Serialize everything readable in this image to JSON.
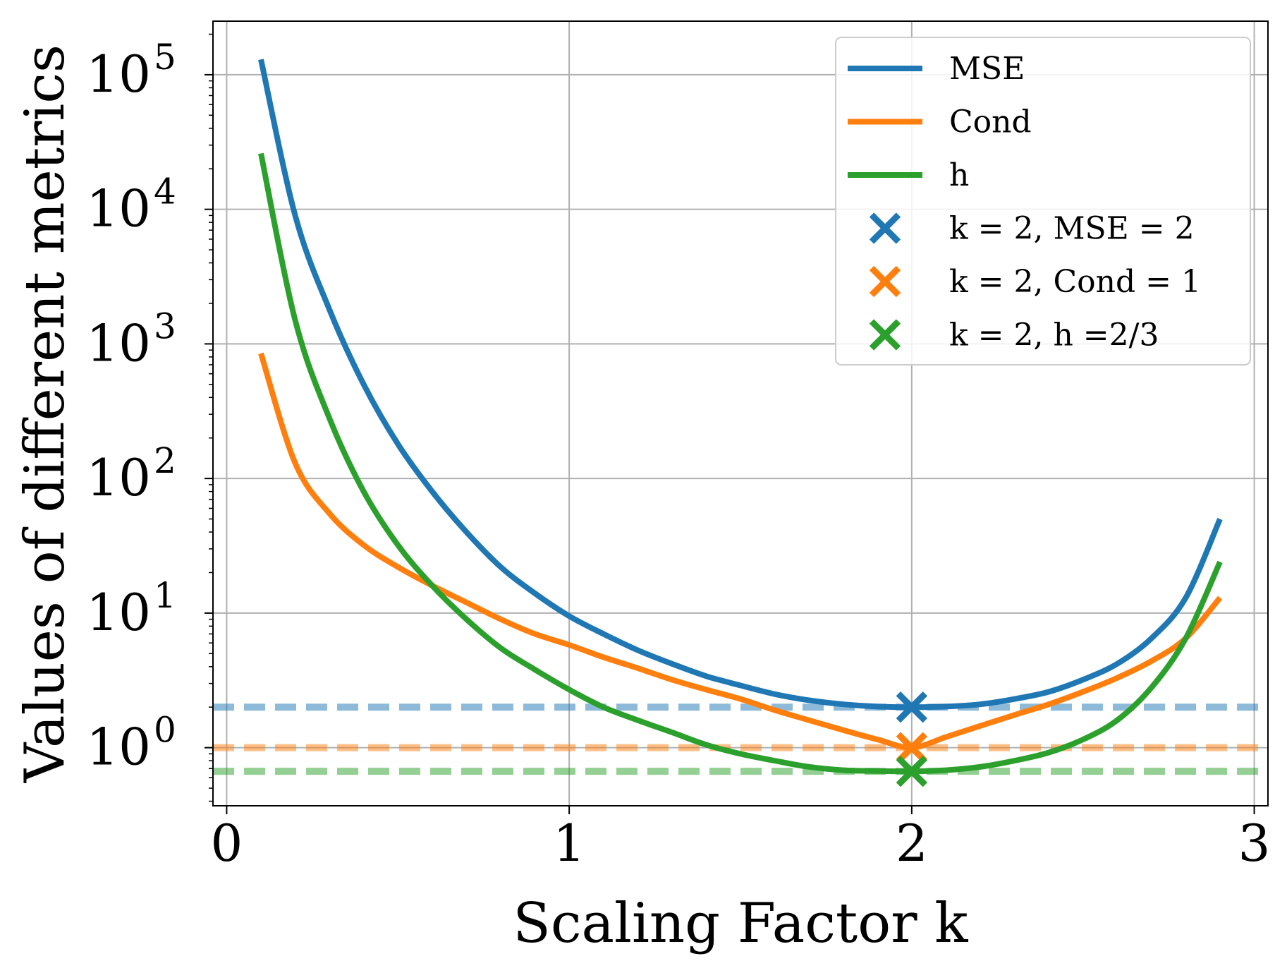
{
  "chart_data": {
    "type": "line",
    "xlabel": "Scaling Factor k",
    "ylabel": "Values of different metrics",
    "xlim": [
      -0.04,
      3.04
    ],
    "ylim": [
      0.37,
      250000
    ],
    "yscale": "log",
    "grid": true,
    "legend_position": "top-right",
    "x_ticks": [
      {
        "value": 0,
        "label": "0"
      },
      {
        "value": 1,
        "label": "1"
      },
      {
        "value": 2,
        "label": "2"
      },
      {
        "value": 3,
        "label": "3"
      }
    ],
    "y_ticks": [
      {
        "value": 1,
        "base": "10",
        "exp": "0"
      },
      {
        "value": 10,
        "base": "10",
        "exp": "1"
      },
      {
        "value": 100,
        "base": "10",
        "exp": "2"
      },
      {
        "value": 1000,
        "base": "10",
        "exp": "3"
      },
      {
        "value": 10000,
        "base": "10",
        "exp": "4"
      },
      {
        "value": 100000,
        "base": "10",
        "exp": "5"
      }
    ],
    "series": [
      {
        "name": "MSE",
        "color": "#1f77b4",
        "x": [
          0.1,
          0.2,
          0.3,
          0.4,
          0.5,
          0.6,
          0.7,
          0.8,
          0.9,
          1.0,
          1.1,
          1.2,
          1.3,
          1.4,
          1.5,
          1.6,
          1.7,
          1.8,
          1.9,
          2.0,
          2.1,
          2.2,
          2.3,
          2.4,
          2.5,
          2.6,
          2.7,
          2.8,
          2.9
        ],
        "y": [
          130000,
          9000,
          1800,
          500,
          180,
          80,
          40,
          22,
          14,
          9.5,
          7,
          5.3,
          4.2,
          3.4,
          2.9,
          2.5,
          2.25,
          2.1,
          2.02,
          2.0,
          2.02,
          2.1,
          2.3,
          2.6,
          3.2,
          4.2,
          6.5,
          13,
          50
        ]
      },
      {
        "name": "Cond",
        "color": "#ff7f0e",
        "x": [
          0.1,
          0.2,
          0.3,
          0.4,
          0.5,
          0.6,
          0.7,
          0.8,
          0.9,
          1.0,
          1.1,
          1.2,
          1.3,
          1.4,
          1.5,
          1.6,
          1.7,
          1.8,
          1.9,
          2.0,
          2.1,
          2.2,
          2.3,
          2.4,
          2.5,
          2.6,
          2.7,
          2.8,
          2.9
        ],
        "y": [
          850,
          130,
          55,
          32,
          22,
          16,
          12,
          9,
          7,
          5.8,
          4.7,
          3.9,
          3.2,
          2.7,
          2.3,
          1.9,
          1.6,
          1.35,
          1.15,
          1.0,
          1.2,
          1.45,
          1.75,
          2.1,
          2.6,
          3.3,
          4.4,
          6.5,
          13
        ]
      },
      {
        "name": "h",
        "color": "#2ca02c",
        "x": [
          0.1,
          0.2,
          0.3,
          0.4,
          0.5,
          0.6,
          0.7,
          0.8,
          0.9,
          1.0,
          1.1,
          1.2,
          1.3,
          1.4,
          1.5,
          1.6,
          1.7,
          1.8,
          1.9,
          2.0,
          2.1,
          2.2,
          2.3,
          2.4,
          2.5,
          2.6,
          2.7,
          2.8,
          2.9
        ],
        "y": [
          26000,
          1500,
          280,
          80,
          32,
          16,
          9,
          5.5,
          3.8,
          2.7,
          2.0,
          1.6,
          1.3,
          1.05,
          0.9,
          0.8,
          0.72,
          0.68,
          0.67,
          0.667,
          0.68,
          0.72,
          0.8,
          0.92,
          1.15,
          1.6,
          2.8,
          6.5,
          24
        ]
      }
    ],
    "reference_lines": [
      {
        "y": 2,
        "color": "#1f77b4"
      },
      {
        "y": 1,
        "color": "#ff7f0e"
      },
      {
        "y": 0.667,
        "color": "#2ca02c"
      }
    ],
    "markers": [
      {
        "label": "k = 2, MSE = 2",
        "x": 2,
        "y": 2,
        "color": "#1f77b4"
      },
      {
        "label": "k = 2, Cond = 1",
        "x": 2,
        "y": 1,
        "color": "#ff7f0e"
      },
      {
        "label": "k = 2, h =2/3",
        "x": 2,
        "y": 0.667,
        "color": "#2ca02c"
      }
    ]
  }
}
